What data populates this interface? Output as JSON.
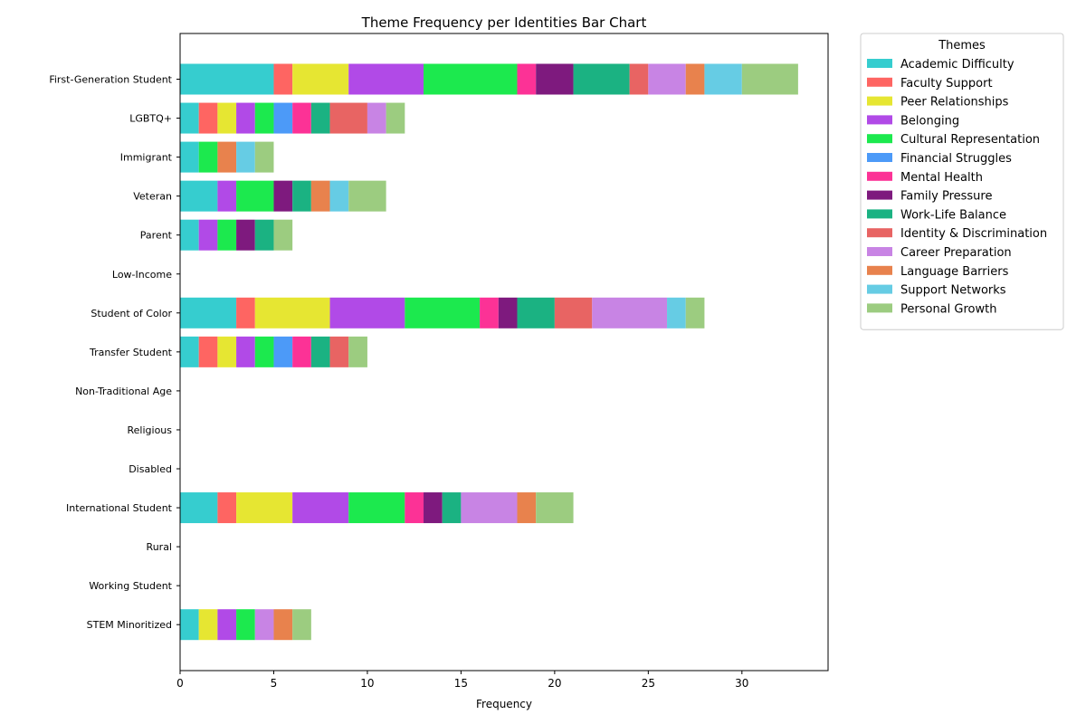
{
  "chart_data": {
    "type": "bar",
    "orientation": "horizontal",
    "stacked": true,
    "title": "Theme Frequency per Identities Bar Chart",
    "xlabel": "Frequency",
    "ylabel": "",
    "xlim": [
      0,
      34.6
    ],
    "xticks": [
      0,
      5,
      10,
      15,
      20,
      25,
      30
    ],
    "grid": false,
    "legend": {
      "title": "Themes",
      "placement": "outside-top-right"
    },
    "categories": [
      "First-Generation Student",
      "LGBTQ+",
      "Immigrant",
      "Veteran",
      "Parent",
      "Low-Income",
      "Student of Color",
      "Transfer Student",
      "Non-Traditional Age",
      "Religious",
      "Disabled",
      "International Student",
      "Rural",
      "Working Student",
      "STEM Minoritized"
    ],
    "series": [
      {
        "name": "Academic Difficulty",
        "color": "#36cdcf",
        "values": [
          5,
          1,
          1,
          2,
          1,
          0,
          3,
          1,
          0,
          0,
          0,
          2,
          0,
          0,
          1
        ]
      },
      {
        "name": "Faculty Support",
        "color": "#fe6562",
        "values": [
          1,
          1,
          0,
          0,
          0,
          0,
          1,
          1,
          0,
          0,
          0,
          1,
          0,
          0,
          0
        ]
      },
      {
        "name": "Peer Relationships",
        "color": "#e6e632",
        "values": [
          3,
          1,
          0,
          0,
          0,
          0,
          4,
          1,
          0,
          0,
          0,
          3,
          0,
          0,
          1
        ]
      },
      {
        "name": "Belonging",
        "color": "#b14ae7",
        "values": [
          4,
          1,
          0,
          1,
          1,
          0,
          4,
          1,
          0,
          0,
          0,
          3,
          0,
          0,
          1
        ]
      },
      {
        "name": "Cultural Representation",
        "color": "#1ce94e",
        "values": [
          5,
          1,
          1,
          2,
          1,
          0,
          4,
          1,
          0,
          0,
          0,
          3,
          0,
          0,
          1
        ]
      },
      {
        "name": "Financial Struggles",
        "color": "#4c9af8",
        "values": [
          0,
          1,
          0,
          0,
          0,
          0,
          0,
          1,
          0,
          0,
          0,
          0,
          0,
          0,
          0
        ]
      },
      {
        "name": "Mental Health",
        "color": "#fc3296",
        "values": [
          1,
          1,
          0,
          0,
          0,
          0,
          1,
          1,
          0,
          0,
          0,
          1,
          0,
          0,
          0
        ]
      },
      {
        "name": "Family Pressure",
        "color": "#7e1a7e",
        "values": [
          2,
          0,
          0,
          1,
          1,
          0,
          1,
          0,
          0,
          0,
          0,
          1,
          0,
          0,
          0
        ]
      },
      {
        "name": "Work-Life Balance",
        "color": "#1bb282",
        "values": [
          3,
          1,
          0,
          1,
          1,
          0,
          2,
          1,
          0,
          0,
          0,
          1,
          0,
          0,
          0
        ]
      },
      {
        "name": "Identity & Discrimination",
        "color": "#e86463",
        "values": [
          1,
          2,
          0,
          0,
          0,
          0,
          2,
          1,
          0,
          0,
          0,
          0,
          0,
          0,
          0
        ]
      },
      {
        "name": "Career Preparation",
        "color": "#c884e4",
        "values": [
          2,
          1,
          0,
          0,
          0,
          0,
          4,
          0,
          0,
          0,
          0,
          3,
          0,
          0,
          1
        ]
      },
      {
        "name": "Language Barriers",
        "color": "#e8824d",
        "values": [
          1,
          0,
          1,
          1,
          0,
          0,
          0,
          0,
          0,
          0,
          0,
          1,
          0,
          0,
          1
        ]
      },
      {
        "name": "Support Networks",
        "color": "#66cce4",
        "values": [
          2,
          0,
          1,
          1,
          0,
          0,
          1,
          0,
          0,
          0,
          0,
          0,
          0,
          0,
          0
        ]
      },
      {
        "name": "Personal Growth",
        "color": "#9ccc80",
        "values": [
          3,
          1,
          1,
          2,
          1,
          0,
          1,
          1,
          0,
          0,
          0,
          2,
          0,
          0,
          1
        ]
      }
    ]
  }
}
